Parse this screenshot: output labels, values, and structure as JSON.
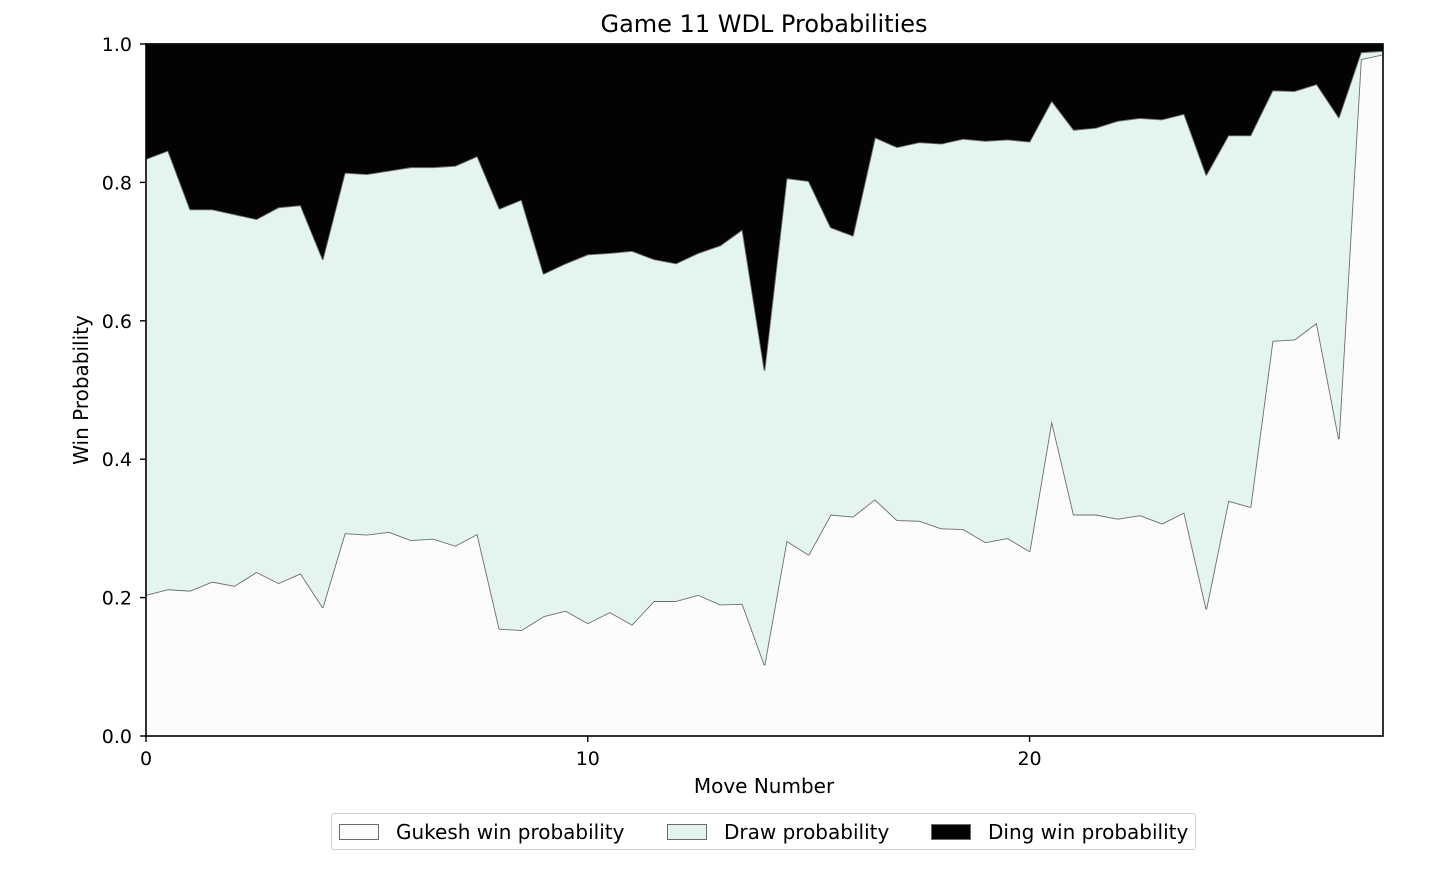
{
  "chart_data": {
    "type": "area",
    "title": "Game 11 WDL Probabilities",
    "xlabel": "Move Number",
    "ylabel": "Win Probability",
    "xlim": [
      0,
      28
    ],
    "ylim": [
      0,
      1
    ],
    "xticks": [
      "0",
      "10",
      "20"
    ],
    "yticks": [
      "0.0",
      "0.2",
      "0.4",
      "0.6",
      "0.8",
      "1.0"
    ],
    "stacked": true,
    "grid": false,
    "legend_position": "bottom-center",
    "x": [
      0,
      0.5,
      1,
      1.5,
      2,
      2.5,
      3,
      3.5,
      4,
      4.5,
      5,
      5.5,
      6,
      6.5,
      7,
      7.5,
      8,
      8.5,
      9,
      9.5,
      10,
      10.5,
      11,
      11.5,
      12,
      12.5,
      13,
      13.5,
      14,
      14.5,
      15,
      15.5,
      16,
      16.5,
      17,
      17.5,
      18,
      18.5,
      19,
      19.5,
      20,
      20.5,
      21,
      21.5,
      22,
      22.5,
      23,
      23.5,
      24,
      24.5,
      25,
      25.5,
      26,
      26.5,
      27,
      27.5,
      28
    ],
    "series": [
      {
        "name": "Gukesh win probability",
        "color": "#fcfcfc",
        "values": [
          0.204,
          0.212,
          0.21,
          0.223,
          0.217,
          0.237,
          0.221,
          0.235,
          0.186,
          0.293,
          0.291,
          0.295,
          0.283,
          0.285,
          0.275,
          0.292,
          0.155,
          0.153,
          0.173,
          0.181,
          0.163,
          0.179,
          0.161,
          0.195,
          0.195,
          0.204,
          0.19,
          0.191,
          0.103,
          0.282,
          0.262,
          0.32,
          0.317,
          0.342,
          0.312,
          0.311,
          0.3,
          0.299,
          0.28,
          0.286,
          0.267,
          0.456,
          0.32,
          0.32,
          0.314,
          0.319,
          0.307,
          0.323,
          0.184,
          0.34,
          0.331,
          0.571,
          0.573,
          0.597,
          0.43,
          0.978,
          0.985
        ]
      },
      {
        "name": "Draw probability",
        "color": "#e3f5ee",
        "values": [
          0.63,
          0.634,
          0.551,
          0.538,
          0.537,
          0.51,
          0.543,
          0.532,
          0.503,
          0.521,
          0.521,
          0.522,
          0.539,
          0.537,
          0.549,
          0.546,
          0.607,
          0.622,
          0.495,
          0.502,
          0.533,
          0.519,
          0.54,
          0.494,
          0.488,
          0.494,
          0.519,
          0.541,
          0.426,
          0.524,
          0.54,
          0.415,
          0.406,
          0.523,
          0.539,
          0.547,
          0.556,
          0.564,
          0.58,
          0.576,
          0.592,
          0.462,
          0.556,
          0.559,
          0.575,
          0.574,
          0.584,
          0.576,
          0.627,
          0.528,
          0.537,
          0.362,
          0.359,
          0.345,
          0.464,
          0.01,
          0.005
        ]
      },
      {
        "name": "Ding win probability",
        "color": "#030303",
        "values": [
          0.166,
          0.154,
          0.239,
          0.239,
          0.246,
          0.253,
          0.236,
          0.233,
          0.311,
          0.186,
          0.188,
          0.183,
          0.178,
          0.178,
          0.176,
          0.162,
          0.238,
          0.225,
          0.332,
          0.317,
          0.304,
          0.302,
          0.299,
          0.311,
          0.317,
          0.302,
          0.291,
          0.268,
          0.471,
          0.194,
          0.198,
          0.265,
          0.277,
          0.135,
          0.149,
          0.142,
          0.144,
          0.137,
          0.14,
          0.138,
          0.141,
          0.082,
          0.124,
          0.121,
          0.111,
          0.107,
          0.109,
          0.101,
          0.189,
          0.132,
          0.132,
          0.067,
          0.068,
          0.058,
          0.106,
          0.012,
          0.01
        ]
      }
    ]
  }
}
